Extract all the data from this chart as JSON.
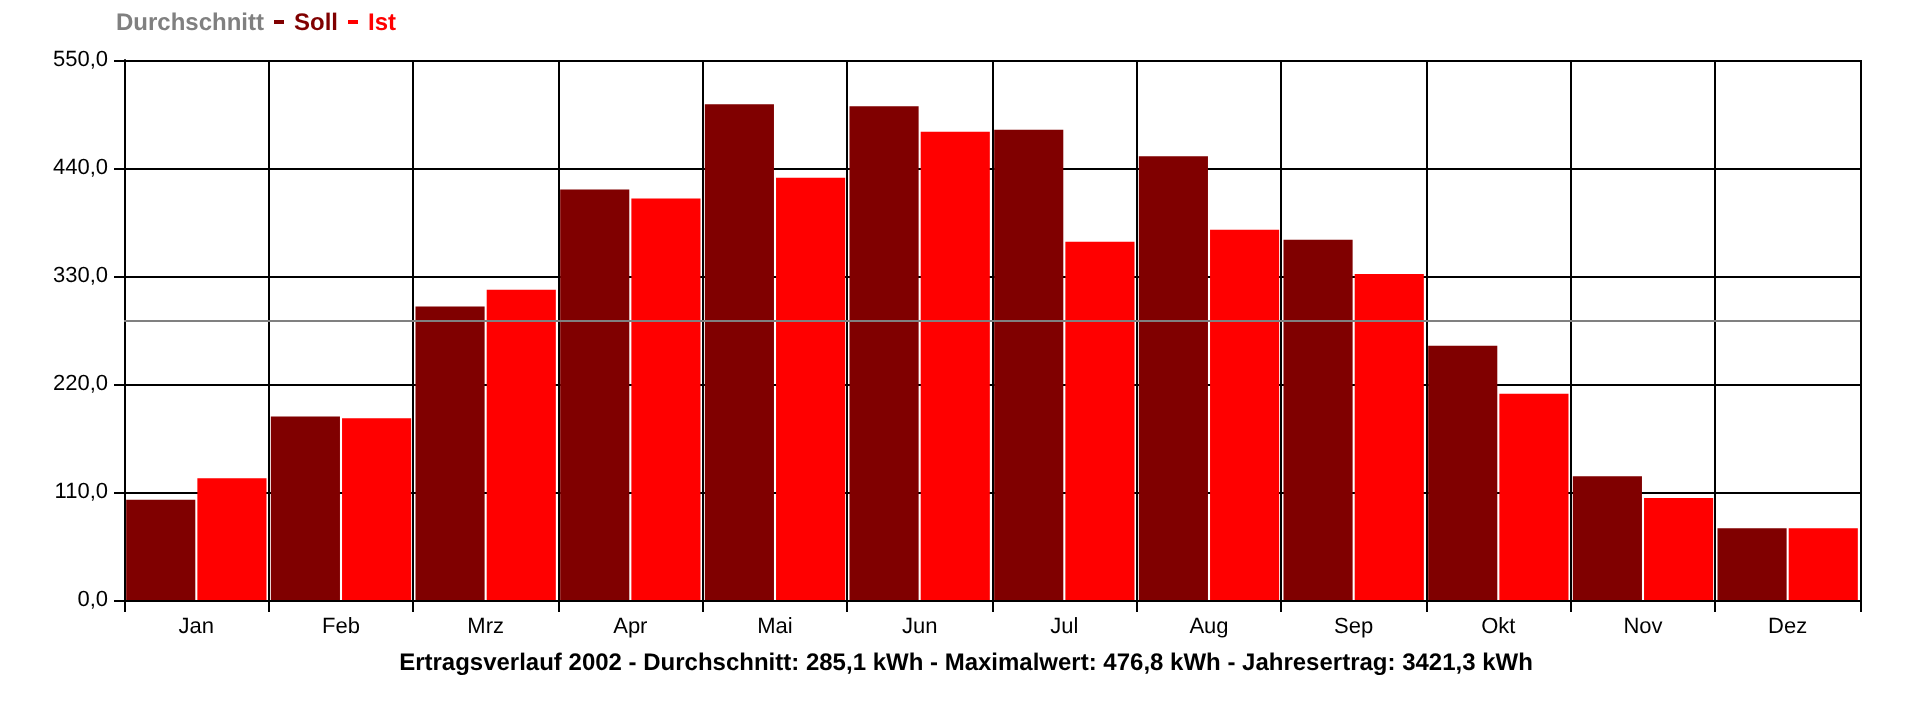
{
  "chart_data": {
    "type": "bar",
    "title": "Ertragsverlauf 2002 - Durchschnitt: 285,1 kWh - Maximalwert: 476,8 kWh - Jahresertrag: 3421,3 kWh",
    "categories": [
      "Jan",
      "Feb",
      "Mrz",
      "Apr",
      "Mai",
      "Jun",
      "Jul",
      "Aug",
      "Sep",
      "Okt",
      "Nov",
      "Dez"
    ],
    "series": [
      {
        "name": "Soll",
        "color": "#800000",
        "values": [
          102,
          187,
          299,
          418,
          505,
          503,
          479,
          452,
          367,
          259,
          126,
          73
        ]
      },
      {
        "name": "Ist",
        "color": "#ff0000",
        "values": [
          124,
          185,
          316,
          409,
          430,
          476.8,
          365,
          377,
          332,
          210,
          104,
          73
        ]
      }
    ],
    "ylim": [
      0,
      550
    ],
    "yticks": [
      {
        "value": 0,
        "label": "0,0"
      },
      {
        "value": 110,
        "label": "110,0"
      },
      {
        "value": 220,
        "label": "220,0"
      },
      {
        "value": 330,
        "label": "330,0"
      },
      {
        "value": 440,
        "label": "440,0"
      },
      {
        "value": 550,
        "label": "550,0"
      }
    ],
    "ref_lines": [
      {
        "axis": "y",
        "value": 285.1,
        "label": "Durchschnitt",
        "color": "#808080"
      }
    ],
    "grid": true,
    "legend": "top left"
  }
}
